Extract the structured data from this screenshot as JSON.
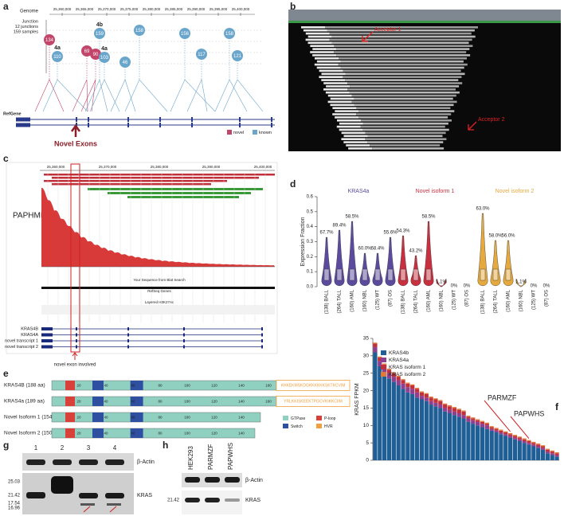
{
  "a": {
    "label": "a",
    "genome": "Genome",
    "genome_ticks": [
      "25,360,000",
      "25,365,000",
      "25,370,000",
      "25,375,000",
      "25,380,000",
      "25,385,000",
      "25,390,000",
      "25,395,000",
      "25,400,000"
    ],
    "junction": [
      "Junction",
      "12 junctions",
      "159 samples"
    ],
    "bubbles": [
      {
        "value": 134,
        "color": "#c2456a"
      },
      {
        "value": 110,
        "color": "#6aa6cc"
      },
      {
        "value": 159,
        "color": "#6aa6cc"
      },
      {
        "value": 69,
        "color": "#c2456a"
      },
      {
        "value": 90,
        "color": "#c2456a"
      },
      {
        "value": 103,
        "color": "#6aa6cc"
      },
      {
        "value": 158,
        "color": "#6aa6cc"
      },
      {
        "value": 46,
        "color": "#6aa6cc"
      },
      {
        "value": 156,
        "color": "#6aa6cc"
      },
      {
        "value": 117,
        "color": "#6aa6cc"
      },
      {
        "value": 158,
        "color": "#6aa6cc"
      },
      {
        "value": 121,
        "color": "#6aa6cc"
      }
    ],
    "exon_labels": [
      "4a",
      "4b",
      "4a"
    ],
    "refgene": "RefGene",
    "legend": [
      {
        "name": "novel",
        "color": "#c2456a"
      },
      {
        "name": "known",
        "color": "#6aa6cc"
      }
    ],
    "arrow_label": "Novel Exons"
  },
  "b": {
    "label": "b",
    "annotations": [
      "Acceptor 1",
      "Acceptor 2"
    ]
  },
  "c": {
    "label": "c",
    "sample": "PAPHMH",
    "coords": [
      "25,360,000",
      "25,370,000",
      "25,380,000",
      "25,390,000",
      "25,400,000"
    ],
    "track_titles": [
      "Your Sequence from Blat Search",
      "RefSeq Genes",
      "Layered H3K27Ac"
    ],
    "tracks": [
      "KRAS4B",
      "KRAS4A",
      "novel transcript 1",
      "novel transcript 2"
    ],
    "note": "novel exon involved"
  },
  "d": {
    "label": "d",
    "ylabel": "Expression Fraction",
    "ylim": [
      0,
      0.6
    ],
    "yticks": [
      {
        "value": 0,
        "label": "0.0"
      },
      {
        "value": 0.1,
        "label": "0.1"
      },
      {
        "value": 0.2,
        "label": "0.2"
      },
      {
        "value": 0.3,
        "label": "0.3"
      },
      {
        "value": 0.4,
        "label": "0.4"
      },
      {
        "value": 0.5,
        "label": "0.5"
      },
      {
        "value": 0.6,
        "label": "0.6"
      }
    ],
    "categories": [
      "(138) BALL",
      "(264) TALL",
      "(160) AML",
      "(160) NBL",
      "(125) WT",
      "(87) OS"
    ],
    "groups": [
      {
        "name": "KRAS4a",
        "color": "#5c4a9e",
        "percent_labels": [
          "67.7%",
          "89.4%",
          "58.5%",
          "60.0%",
          "68.4%",
          "55.6%"
        ]
      },
      {
        "name": "Novel isoform 1",
        "color": "#c8303f",
        "percent_labels": [
          "54.3%",
          "43.2%",
          "58.5%",
          "1.1%",
          "0%",
          "0%"
        ]
      },
      {
        "name": "Novel isoform 2",
        "color": "#e6a93e",
        "percent_labels": [
          "63.0%",
          "58.0%",
          "56.0%",
          "1.1%",
          "0%",
          "0%"
        ]
      }
    ]
  },
  "e": {
    "label": "e",
    "rows": [
      "KRAS4B (188 aa)",
      "KRAS4a (189 aa)",
      "Novel Isoform 1 (154 aa)",
      "Novel Isoform 2 (150 aa)"
    ],
    "ticks": [
      20,
      40,
      60,
      80,
      100,
      120,
      140,
      160
    ],
    "tails": [
      "KHKEKMSKDGKKKKKKSKTKCVIM",
      "YRLKKISKEEKTPGCVKIKKCIIM"
    ],
    "legend": [
      {
        "name": "GTPase",
        "color": "#8fd0c0"
      },
      {
        "name": "P-loop",
        "color": "#d8403a"
      },
      {
        "name": "Switch",
        "color": "#2f4fa0"
      },
      {
        "name": "HVR",
        "color": "#f0a040"
      }
    ]
  },
  "f": {
    "label": "f",
    "ylabel": "KRAS FPKM",
    "ylim": [
      0,
      35
    ],
    "yticks": [
      0,
      5,
      10,
      15,
      20,
      25,
      30,
      35
    ],
    "series": [
      {
        "name": "KRAS4b",
        "color": "#1f5f95",
        "values": [
          31,
          27,
          25,
          23.5,
          22.5,
          21.5,
          20.5,
          19.5,
          19,
          18,
          17.5,
          17,
          16,
          15.5,
          15,
          14,
          13.5,
          13,
          12.5,
          12,
          11,
          10.5,
          10,
          9.5,
          9,
          8.5,
          8,
          7.5,
          7,
          6.5,
          6,
          5.5,
          5,
          4.5,
          4,
          3.5,
          3,
          2,
          1.5,
          1
        ]
      },
      {
        "name": "KRAS4a",
        "color": "#8e3f8e",
        "values": [
          1.5,
          1.5,
          1.5,
          1.5,
          1.5,
          1.5,
          1.5,
          1.5,
          1.5,
          1.5,
          1,
          1,
          1,
          1,
          1,
          1,
          1,
          1,
          1,
          1,
          1,
          1,
          1,
          1,
          1,
          0.5,
          0.5,
          0.5,
          0.5,
          0.5,
          0.5,
          0.5,
          0.5,
          0.5,
          0.5,
          0.5,
          0.5,
          0.5,
          0.5,
          0.5
        ]
      },
      {
        "name": "KRAS isoform 1",
        "color": "#c0303a",
        "values": [
          1,
          1,
          1,
          1,
          1,
          1,
          1,
          1,
          1,
          1,
          1,
          1,
          1,
          1,
          1,
          1,
          1,
          1,
          1,
          1,
          0.5,
          0.5,
          0.5,
          0.5,
          0.5,
          0.5,
          0.5,
          0.5,
          0.5,
          0.5,
          0.5,
          0.5,
          0.5,
          0.5,
          0.5,
          0.5,
          0.5,
          0.5,
          0.5,
          0.5
        ]
      },
      {
        "name": "KRAS isoform 2",
        "color": "#e07a3a",
        "values": [
          0.3,
          0.3,
          0.3,
          0.3,
          0.3,
          0.3,
          0.3,
          0.3,
          0.3,
          0.3,
          0.3,
          0.3,
          0.3,
          0.3,
          0.3,
          0.3,
          0.3,
          0.3,
          0.3,
          0.3,
          0.3,
          0.3,
          0.3,
          0.3,
          0.3,
          0.3,
          0.3,
          0.3,
          0.3,
          0.3,
          0.3,
          0.3,
          0.3,
          0.3,
          0.3,
          0.3,
          0.3,
          0.3,
          0.3,
          0.3
        ]
      }
    ],
    "annotations": [
      "PARMZF",
      "PAPWHS"
    ]
  },
  "g": {
    "label": "g",
    "lanes": [
      "1",
      "2",
      "3",
      "4"
    ],
    "markers": [
      "25.03",
      "21.42",
      "17.54",
      "16.96"
    ],
    "bands": [
      "β-Actin",
      "KRAS"
    ]
  },
  "h": {
    "label": "h",
    "lanes": [
      "HEK293",
      "PARMZF",
      "PAPWHS"
    ],
    "markers": [
      "21.42"
    ],
    "bands": [
      "β-Actin",
      "KRAS"
    ]
  }
}
